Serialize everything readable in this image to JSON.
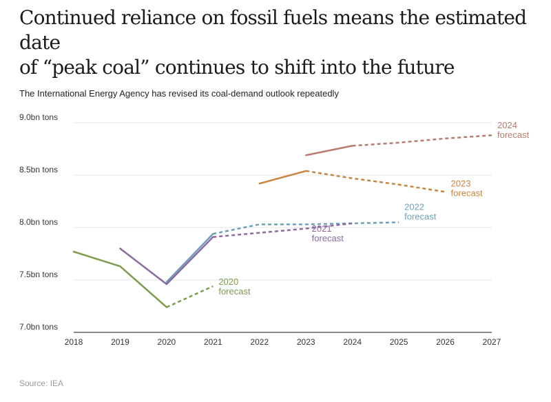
{
  "title_line1": "Continued reliance on fossil fuels means the estimated date",
  "title_line2": "of “peak coal” continues to shift into the future",
  "subtitle": "The International Energy Agency has revised its coal-demand outlook repeatedly",
  "source": "Source: IEA",
  "chart_data": {
    "type": "line",
    "title": "Continued reliance on fossil fuels means the estimated date of “peak coal” continues to shift into the future",
    "xlabel": "",
    "ylabel": "",
    "x": [
      2018,
      2019,
      2020,
      2021,
      2022,
      2023,
      2024,
      2025,
      2026,
      2027
    ],
    "xlim": [
      2018,
      2027
    ],
    "ylim": [
      7.0,
      9.0
    ],
    "yticks": [
      7.0,
      7.5,
      8.0,
      8.5,
      9.0
    ],
    "ytick_labels": [
      "7.0bn tons",
      "7.5bn tons",
      "8.0bn tons",
      "8.5bn tons",
      "9.0bn tons"
    ],
    "xtick_labels": [
      "2018",
      "2019",
      "2020",
      "2021",
      "2022",
      "2023",
      "2024",
      "2025",
      "2026",
      "2027"
    ],
    "grid": true,
    "series": [
      {
        "name": "2020 forecast",
        "label_line1": "2020",
        "label_line2": "forecast",
        "color": "#7f9c4e",
        "actual": [
          [
            2018,
            7.77
          ],
          [
            2019,
            7.63
          ],
          [
            2020,
            7.24
          ]
        ],
        "forecast": [
          [
            2020,
            7.24
          ],
          [
            2021,
            7.44
          ]
        ]
      },
      {
        "name": "2022 forecast",
        "label_line1": "2022",
        "label_line2": "forecast",
        "color": "#6d9fb8",
        "actual": [
          [
            2020,
            7.48
          ],
          [
            2021,
            7.94
          ]
        ],
        "forecast": [
          [
            2021,
            7.94
          ],
          [
            2022,
            8.03
          ],
          [
            2023,
            8.03
          ],
          [
            2024,
            8.04
          ],
          [
            2025,
            8.05
          ]
        ]
      },
      {
        "name": "2021 forecast",
        "label_line1": "2021",
        "label_line2": "forecast",
        "color": "#8c6aa0",
        "actual": [
          [
            2019,
            7.8
          ],
          [
            2020,
            7.46
          ],
          [
            2021,
            7.91
          ]
        ],
        "forecast": [
          [
            2021,
            7.91
          ],
          [
            2022,
            7.95
          ],
          [
            2023,
            7.99
          ],
          [
            2024,
            8.04
          ]
        ]
      },
      {
        "name": "2023 forecast",
        "label_line1": "2023",
        "label_line2": "forecast",
        "color": "#c9843e",
        "actual": [
          [
            2022,
            8.42
          ],
          [
            2023,
            8.54
          ]
        ],
        "forecast": [
          [
            2023,
            8.54
          ],
          [
            2024,
            8.47
          ],
          [
            2025,
            8.41
          ],
          [
            2026,
            8.34
          ]
        ]
      },
      {
        "name": "2024 forecast",
        "label_line1": "2024",
        "label_line2": "forecast",
        "color": "#b87a6e",
        "actual": [
          [
            2023,
            8.69
          ],
          [
            2024,
            8.78
          ]
        ],
        "forecast": [
          [
            2024,
            8.78
          ],
          [
            2025,
            8.81
          ],
          [
            2026,
            8.85
          ],
          [
            2027,
            8.88
          ]
        ]
      }
    ]
  }
}
